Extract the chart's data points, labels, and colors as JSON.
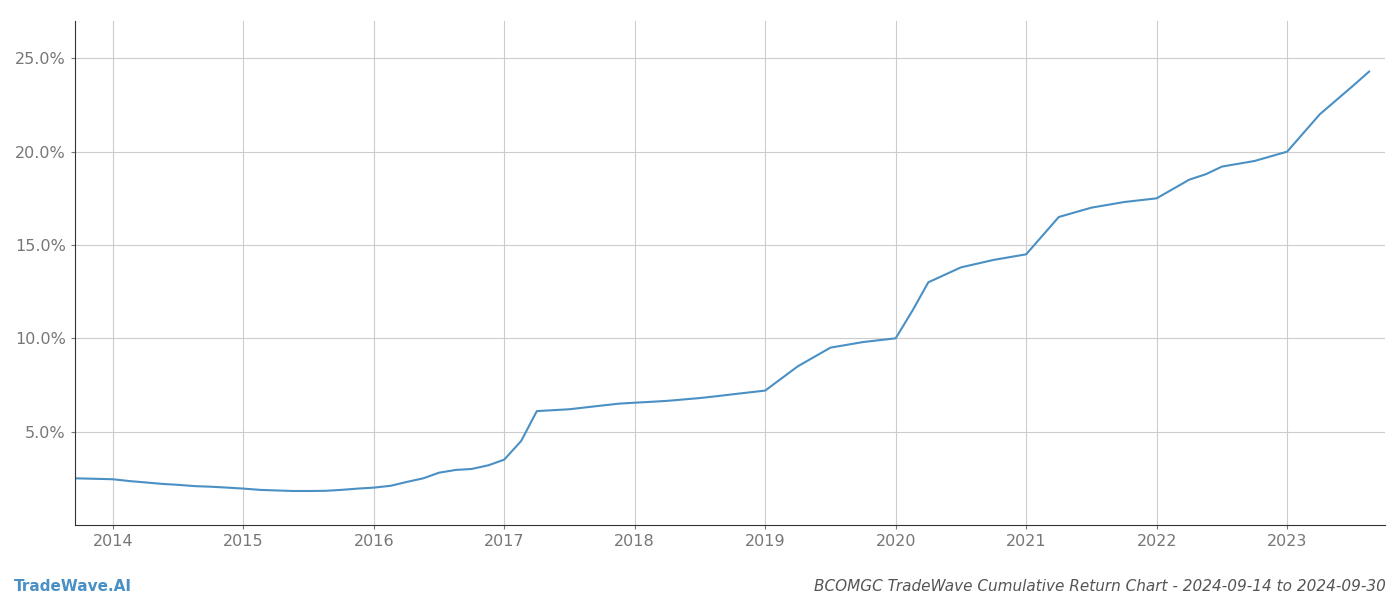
{
  "title": "BCOMGC TradeWave Cumulative Return Chart - 2024-09-14 to 2024-09-30",
  "watermark": "TradeWave.AI",
  "line_color": "#4a90c4",
  "background_color": "#ffffff",
  "grid_color": "#cccccc",
  "x_years": [
    2014,
    2015,
    2016,
    2017,
    2018,
    2019,
    2020,
    2021,
    2022,
    2023
  ],
  "x_values": [
    2013.71,
    2014.0,
    2014.13,
    2014.25,
    2014.38,
    2014.5,
    2014.63,
    2014.75,
    2014.88,
    2015.0,
    2015.13,
    2015.25,
    2015.38,
    2015.5,
    2015.63,
    2015.75,
    2015.88,
    2016.0,
    2016.13,
    2016.25,
    2016.38,
    2016.5,
    2016.63,
    2016.75,
    2016.88,
    2017.0,
    2017.13,
    2017.25,
    2017.5,
    2017.75,
    2017.88,
    2018.0,
    2018.13,
    2018.25,
    2018.5,
    2018.63,
    2018.75,
    2019.0,
    2019.25,
    2019.5,
    2019.75,
    2020.0,
    2020.13,
    2020.25,
    2020.5,
    2020.75,
    2021.0,
    2021.25,
    2021.5,
    2021.75,
    2022.0,
    2022.25,
    2022.38,
    2022.5,
    2022.75,
    2023.0,
    2023.25,
    2023.5,
    2023.63
  ],
  "y_values": [
    2.5,
    2.45,
    2.35,
    2.28,
    2.2,
    2.15,
    2.08,
    2.05,
    2.0,
    1.95,
    1.88,
    1.85,
    1.82,
    1.82,
    1.83,
    1.88,
    1.95,
    2.0,
    2.1,
    2.3,
    2.5,
    2.8,
    2.95,
    3.0,
    3.2,
    3.5,
    4.5,
    6.1,
    6.2,
    6.4,
    6.5,
    6.55,
    6.6,
    6.65,
    6.8,
    6.9,
    7.0,
    7.2,
    8.5,
    9.5,
    9.8,
    10.0,
    11.5,
    13.0,
    13.8,
    14.2,
    14.5,
    16.5,
    17.0,
    17.3,
    17.5,
    18.5,
    18.8,
    19.2,
    19.5,
    20.0,
    22.0,
    23.5,
    24.3
  ],
  "ylim": [
    0,
    27
  ],
  "yticks": [
    5.0,
    10.0,
    15.0,
    20.0,
    25.0
  ],
  "ytick_labels": [
    "5.0%",
    "10.0%",
    "15.0%",
    "20.0%",
    "25.0%"
  ],
  "xlim_start": 2013.71,
  "xlim_end": 2023.75,
  "line_width": 1.5,
  "title_fontsize": 11,
  "tick_fontsize": 11.5,
  "watermark_fontsize": 11
}
